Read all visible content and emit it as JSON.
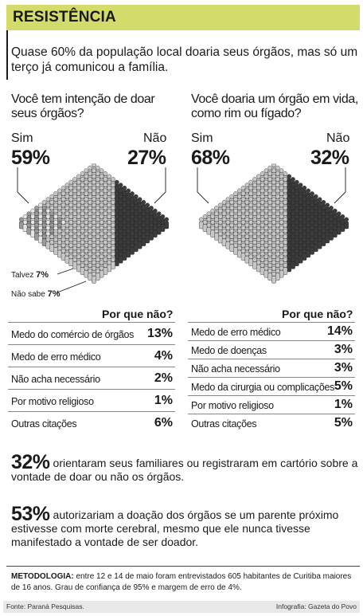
{
  "header": {
    "title": "RESISTÊNCIA"
  },
  "subtitle": "Quase 60% da população local doaria seus órgãos, mas só um terço já comunicou a família.",
  "chart_data": [
    {
      "type": "table",
      "title": "Você tem intenção de doar seus órgãos?",
      "answers": [
        {
          "label": "Sim",
          "value": 59,
          "display": "59%"
        },
        {
          "label": "Não",
          "value": 27,
          "display": "27%"
        },
        {
          "label": "Talvez",
          "value": 7,
          "display": "7%"
        },
        {
          "label": "Não sabe",
          "value": 7,
          "display": "7%"
        }
      ],
      "reasons_title": "Por que não?",
      "reasons": [
        {
          "label": "Medo do comércio de órgãos",
          "value": 13,
          "display": "13%"
        },
        {
          "label": "Medo de erro médico",
          "value": 4,
          "display": "4%"
        },
        {
          "label": "Não acha necessário",
          "value": 2,
          "display": "2%"
        },
        {
          "label": "Por motivo religioso",
          "value": 1,
          "display": "1%"
        },
        {
          "label": "Outras citações",
          "value": 6,
          "display": "6%"
        }
      ]
    },
    {
      "type": "table",
      "title": "Você doaria um órgão em vida, como rim ou fígado?",
      "answers": [
        {
          "label": "Sim",
          "value": 68,
          "display": "68%"
        },
        {
          "label": "Não",
          "value": 32,
          "display": "32%"
        }
      ],
      "reasons_title": "Por que não?",
      "reasons": [
        {
          "label": "Medo de erro médico",
          "value": 14,
          "display": "14%"
        },
        {
          "label": "Medo de doenças",
          "value": 3,
          "display": "3%"
        },
        {
          "label": "Não acha necessário",
          "value": 3,
          "display": "3%"
        },
        {
          "label": "Medo da cirurgia ou complicações",
          "value": 5,
          "display": "5%"
        },
        {
          "label": "Por motivo religioso",
          "value": 1,
          "display": "1%"
        },
        {
          "label": "Outras citações",
          "value": 5,
          "display": "5%"
        }
      ]
    }
  ],
  "stats": [
    {
      "value": "32%",
      "text": "orientaram seus familiares ou registraram em cartório sobre a vontade de doar ou não os órgãos."
    },
    {
      "value": "53%",
      "text": "autorizariam a doação dos órgãos se um parente próximo estivesse com morte cerebral, mesmo que ele nunca tivesse manifestado a vontade de ser doador."
    }
  ],
  "methodology": {
    "label": "METODOLOGIA:",
    "text": "entre 12 e 14 de maio foram entrevistados 605 habitantes de Curitiba maiores de 16 anos. Grau de confiança de 95% e margem de erro de 4%."
  },
  "footer": {
    "source": "Fonte: Paraná Pesquisas.",
    "credit": "Infografia: Gazeta do Povo"
  },
  "colors": {
    "header_bg": "#d3dc6a",
    "figure_light": "#c8c8c8",
    "figure_dark": "#3c3c3c",
    "figure_hatch": "#9a9a9a"
  }
}
